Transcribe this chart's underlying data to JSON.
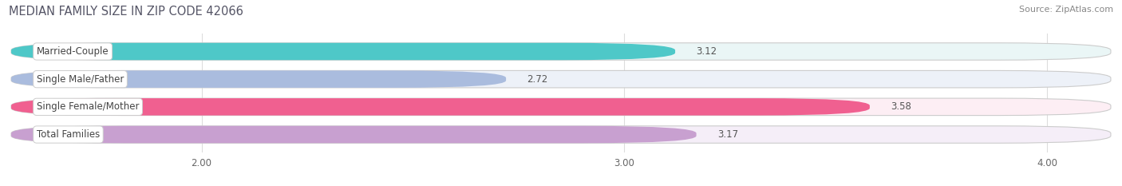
{
  "title": "MEDIAN FAMILY SIZE IN ZIP CODE 42066",
  "source": "Source: ZipAtlas.com",
  "categories": [
    "Married-Couple",
    "Single Male/Father",
    "Single Female/Mother",
    "Total Families"
  ],
  "values": [
    3.12,
    2.72,
    3.58,
    3.17
  ],
  "bar_colors": [
    "#4ec8c8",
    "#aabcde",
    "#f06090",
    "#c8a0d0"
  ],
  "bar_bg_colors": [
    "#eaf6f6",
    "#edf1f8",
    "#fdeef4",
    "#f5eef8"
  ],
  "xlim_min": 1.55,
  "xlim_max": 4.15,
  "xticks": [
    2.0,
    3.0,
    4.0
  ],
  "xtick_labels": [
    "2.00",
    "3.00",
    "4.00"
  ],
  "bar_height": 0.62,
  "label_fontsize": 8.5,
  "value_fontsize": 8.5,
  "title_fontsize": 10.5,
  "source_fontsize": 8.0,
  "title_color": "#555566",
  "source_color": "#888888",
  "label_text_color": "#444444",
  "value_text_color": "#555555",
  "bg_color": "#ffffff",
  "grid_color": "#dddddd"
}
